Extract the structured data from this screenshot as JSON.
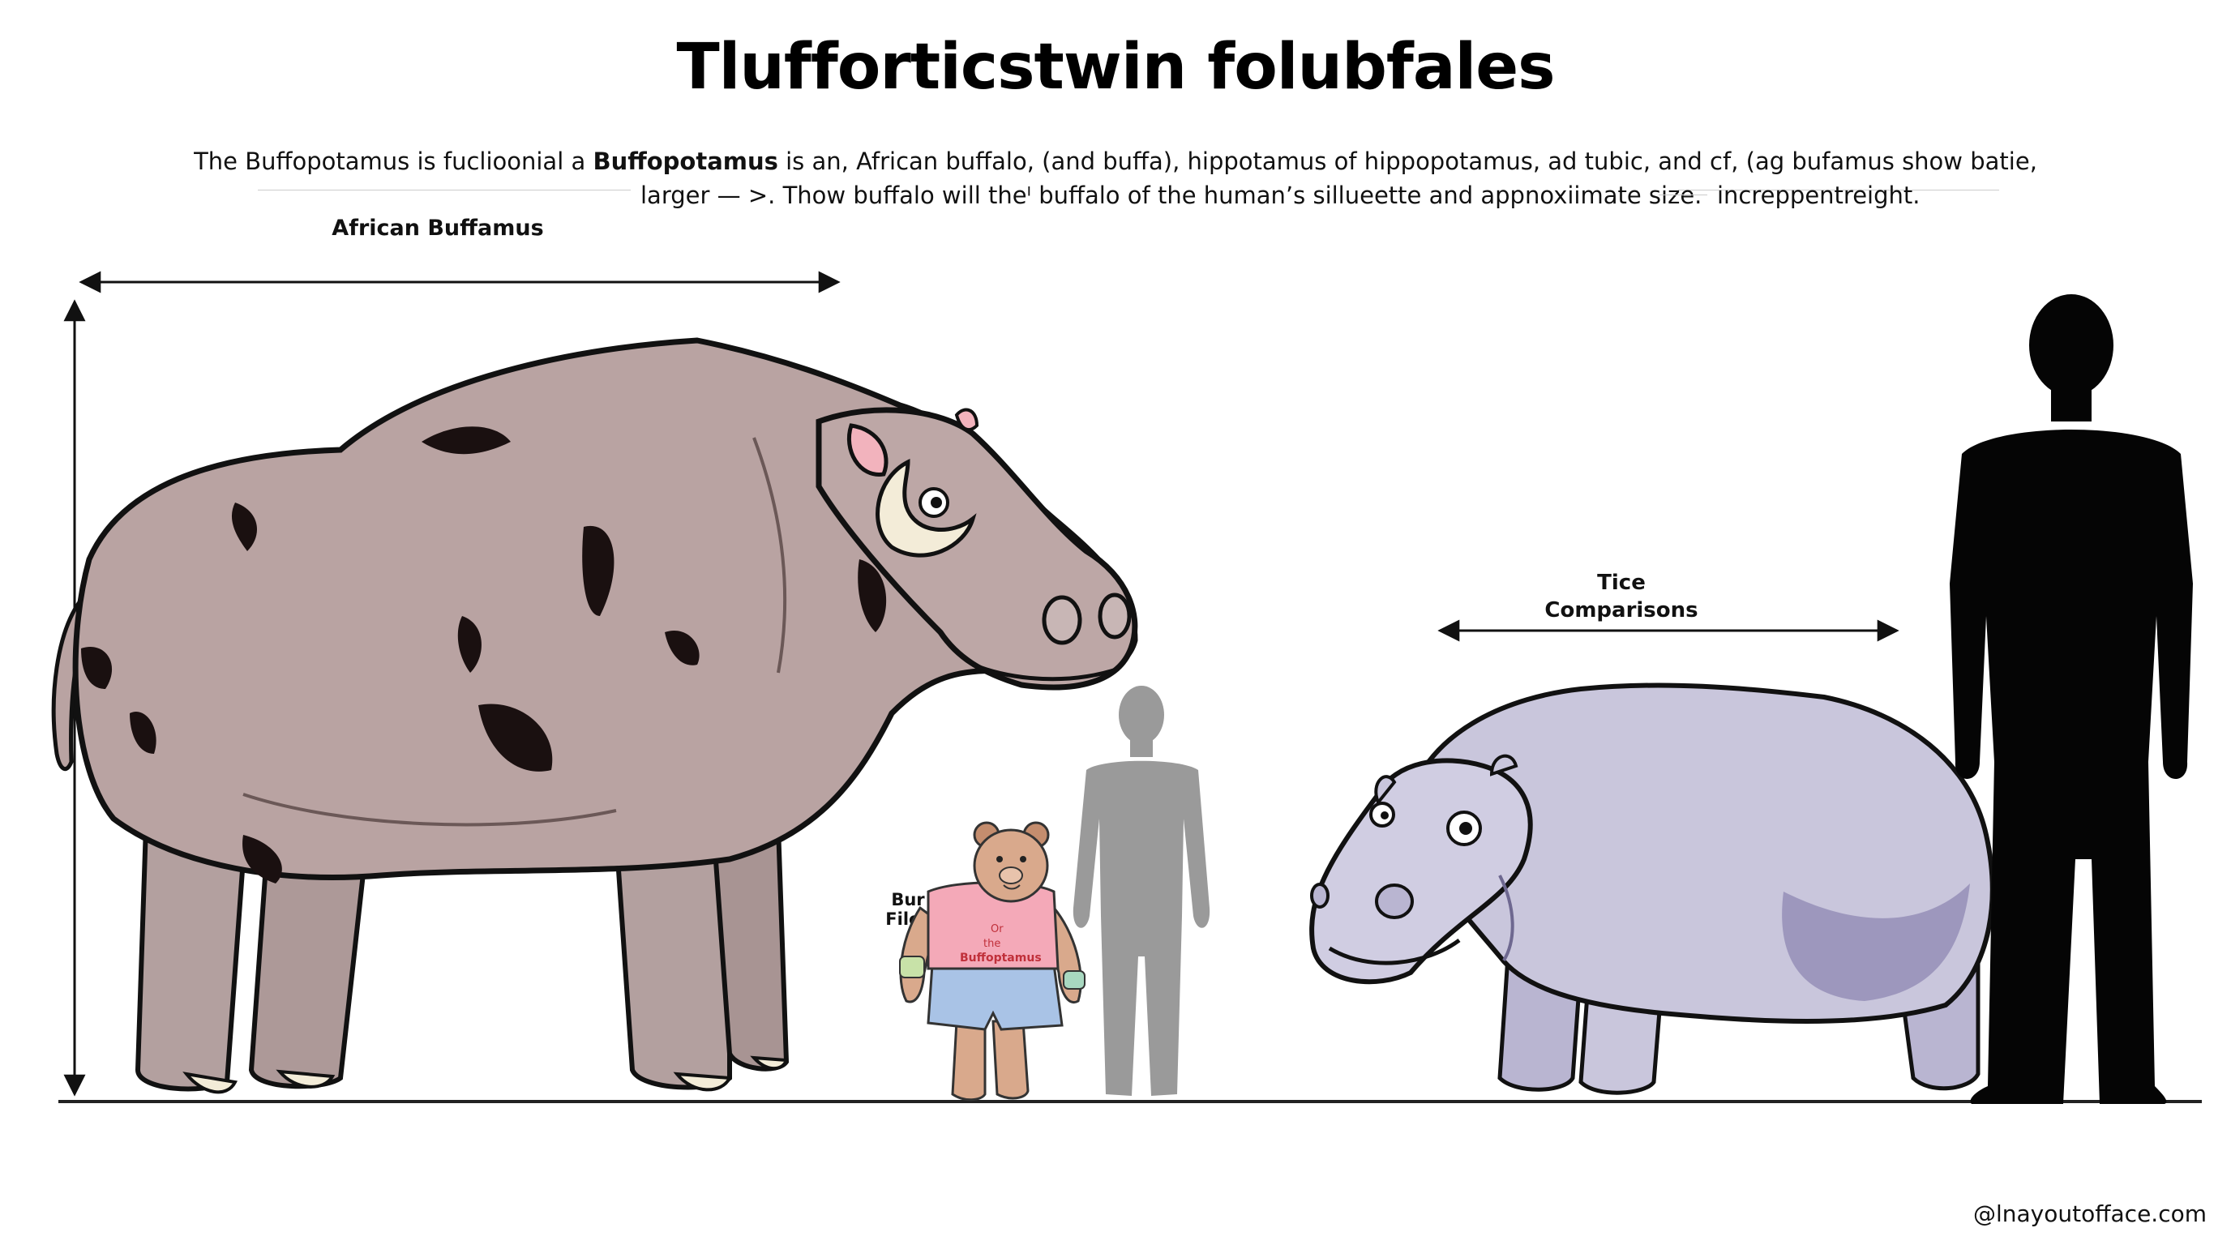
{
  "title": "Tlufforticstwin folubfales",
  "description": {
    "line1_pre": "The Buffopotamus is fuclioonial a ",
    "line1_bold": "Buffopotamus",
    "line1_post": " is an, African buffalo, (and buffa), hippotamus of hippopotamus, ad tubic, and cf, (ag bufamus show batie,",
    "line2_left": "larger — >. Thow buffalo will theᴵ buffalo of the human’s sillueette and appnoxiimate size.",
    "line2_right": "increppentreight."
  },
  "labels": {
    "african_buffamus": "African Buffamus",
    "tice": "Tice",
    "comparisons": "Comparisons",
    "bur": "Bur",
    "filce": "Filce",
    "shirt_line1": "Or",
    "shirt_line2": "the",
    "shirt_line3": "Buffoptamus"
  },
  "watermark": "@lnayoutofface.com",
  "colors": {
    "buffalo_body": "#b9a3a2",
    "buffalo_patch": "#1a1010",
    "hippo_body": "#c9c6dc",
    "hippo_shade": "#9d97bd",
    "gray_silhouette": "#9a9a9a",
    "black_silhouette": "#050505",
    "bear_fur": "#d9a98c",
    "bear_shirt": "#f4a9b8",
    "bear_shorts": "#a9c3e6"
  },
  "icons": [
    "buffopotamus-illustration",
    "hippo-illustration",
    "gray-human-silhouette",
    "black-human-silhouette",
    "bear-mascot"
  ]
}
